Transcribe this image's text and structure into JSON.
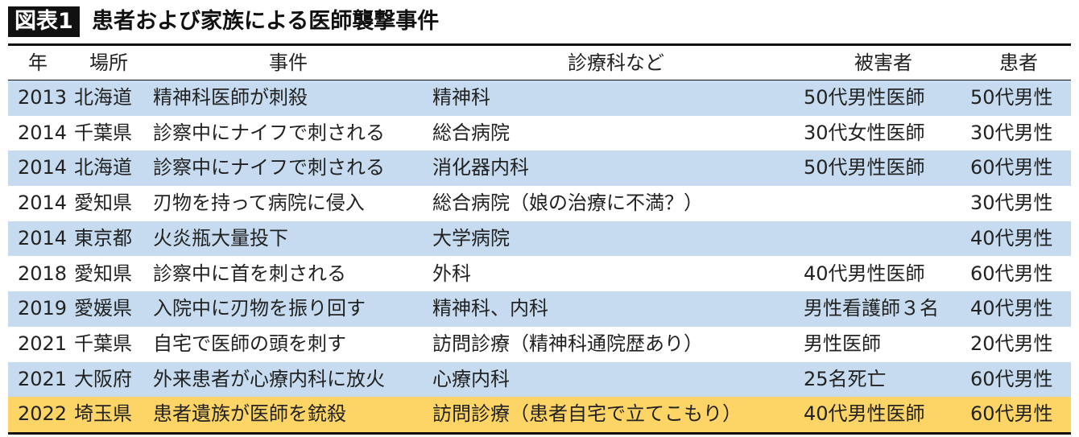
{
  "header": {
    "label": "図表1",
    "title": "患者および家族による医師襲撃事件"
  },
  "table": {
    "columns": [
      "年",
      "場所",
      "事件",
      "診療科など",
      "被害者",
      "患者"
    ],
    "rows": [
      [
        "2013",
        "北海道",
        "精神科医師が刺殺",
        "精神科",
        "50代男性医師",
        "50代男性"
      ],
      [
        "2014",
        "千葉県",
        "診察中にナイフで刺される",
        "総合病院",
        "30代女性医師",
        "30代男性"
      ],
      [
        "2014",
        "北海道",
        "診察中にナイフで刺される",
        "消化器内科",
        "50代男性医師",
        "60代男性"
      ],
      [
        "2014",
        "愛知県",
        "刃物を持って病院に侵入",
        "総合病院（娘の治療に不満？）",
        null,
        "30代男性"
      ],
      [
        "2014",
        "東京都",
        "火炎瓶大量投下",
        "大学病院",
        null,
        "40代男性"
      ],
      [
        "2018",
        "愛知県",
        "診察中に首を刺される",
        "外科",
        "40代男性医師",
        "60代男性"
      ],
      [
        "2019",
        "愛媛県",
        "入院中に刃物を振り回す",
        "精神科、内科",
        "男性看護師３名",
        "40代男性"
      ],
      [
        "2021",
        "千葉県",
        "自宅で医師の頭を刺す",
        "訪問診療（精神科通院歴あり）",
        "男性医師",
        "20代男性"
      ],
      [
        "2021",
        "大阪府",
        "外来患者が心療内科に放火",
        "心療内科",
        "25名死亡",
        "60代男性"
      ],
      [
        "2022",
        "埼玉県",
        "患者遺族が医師を銃殺",
        "訪問診療（患者自宅で立てこもり）",
        "40代男性医師",
        "60代男性"
      ]
    ]
  }
}
